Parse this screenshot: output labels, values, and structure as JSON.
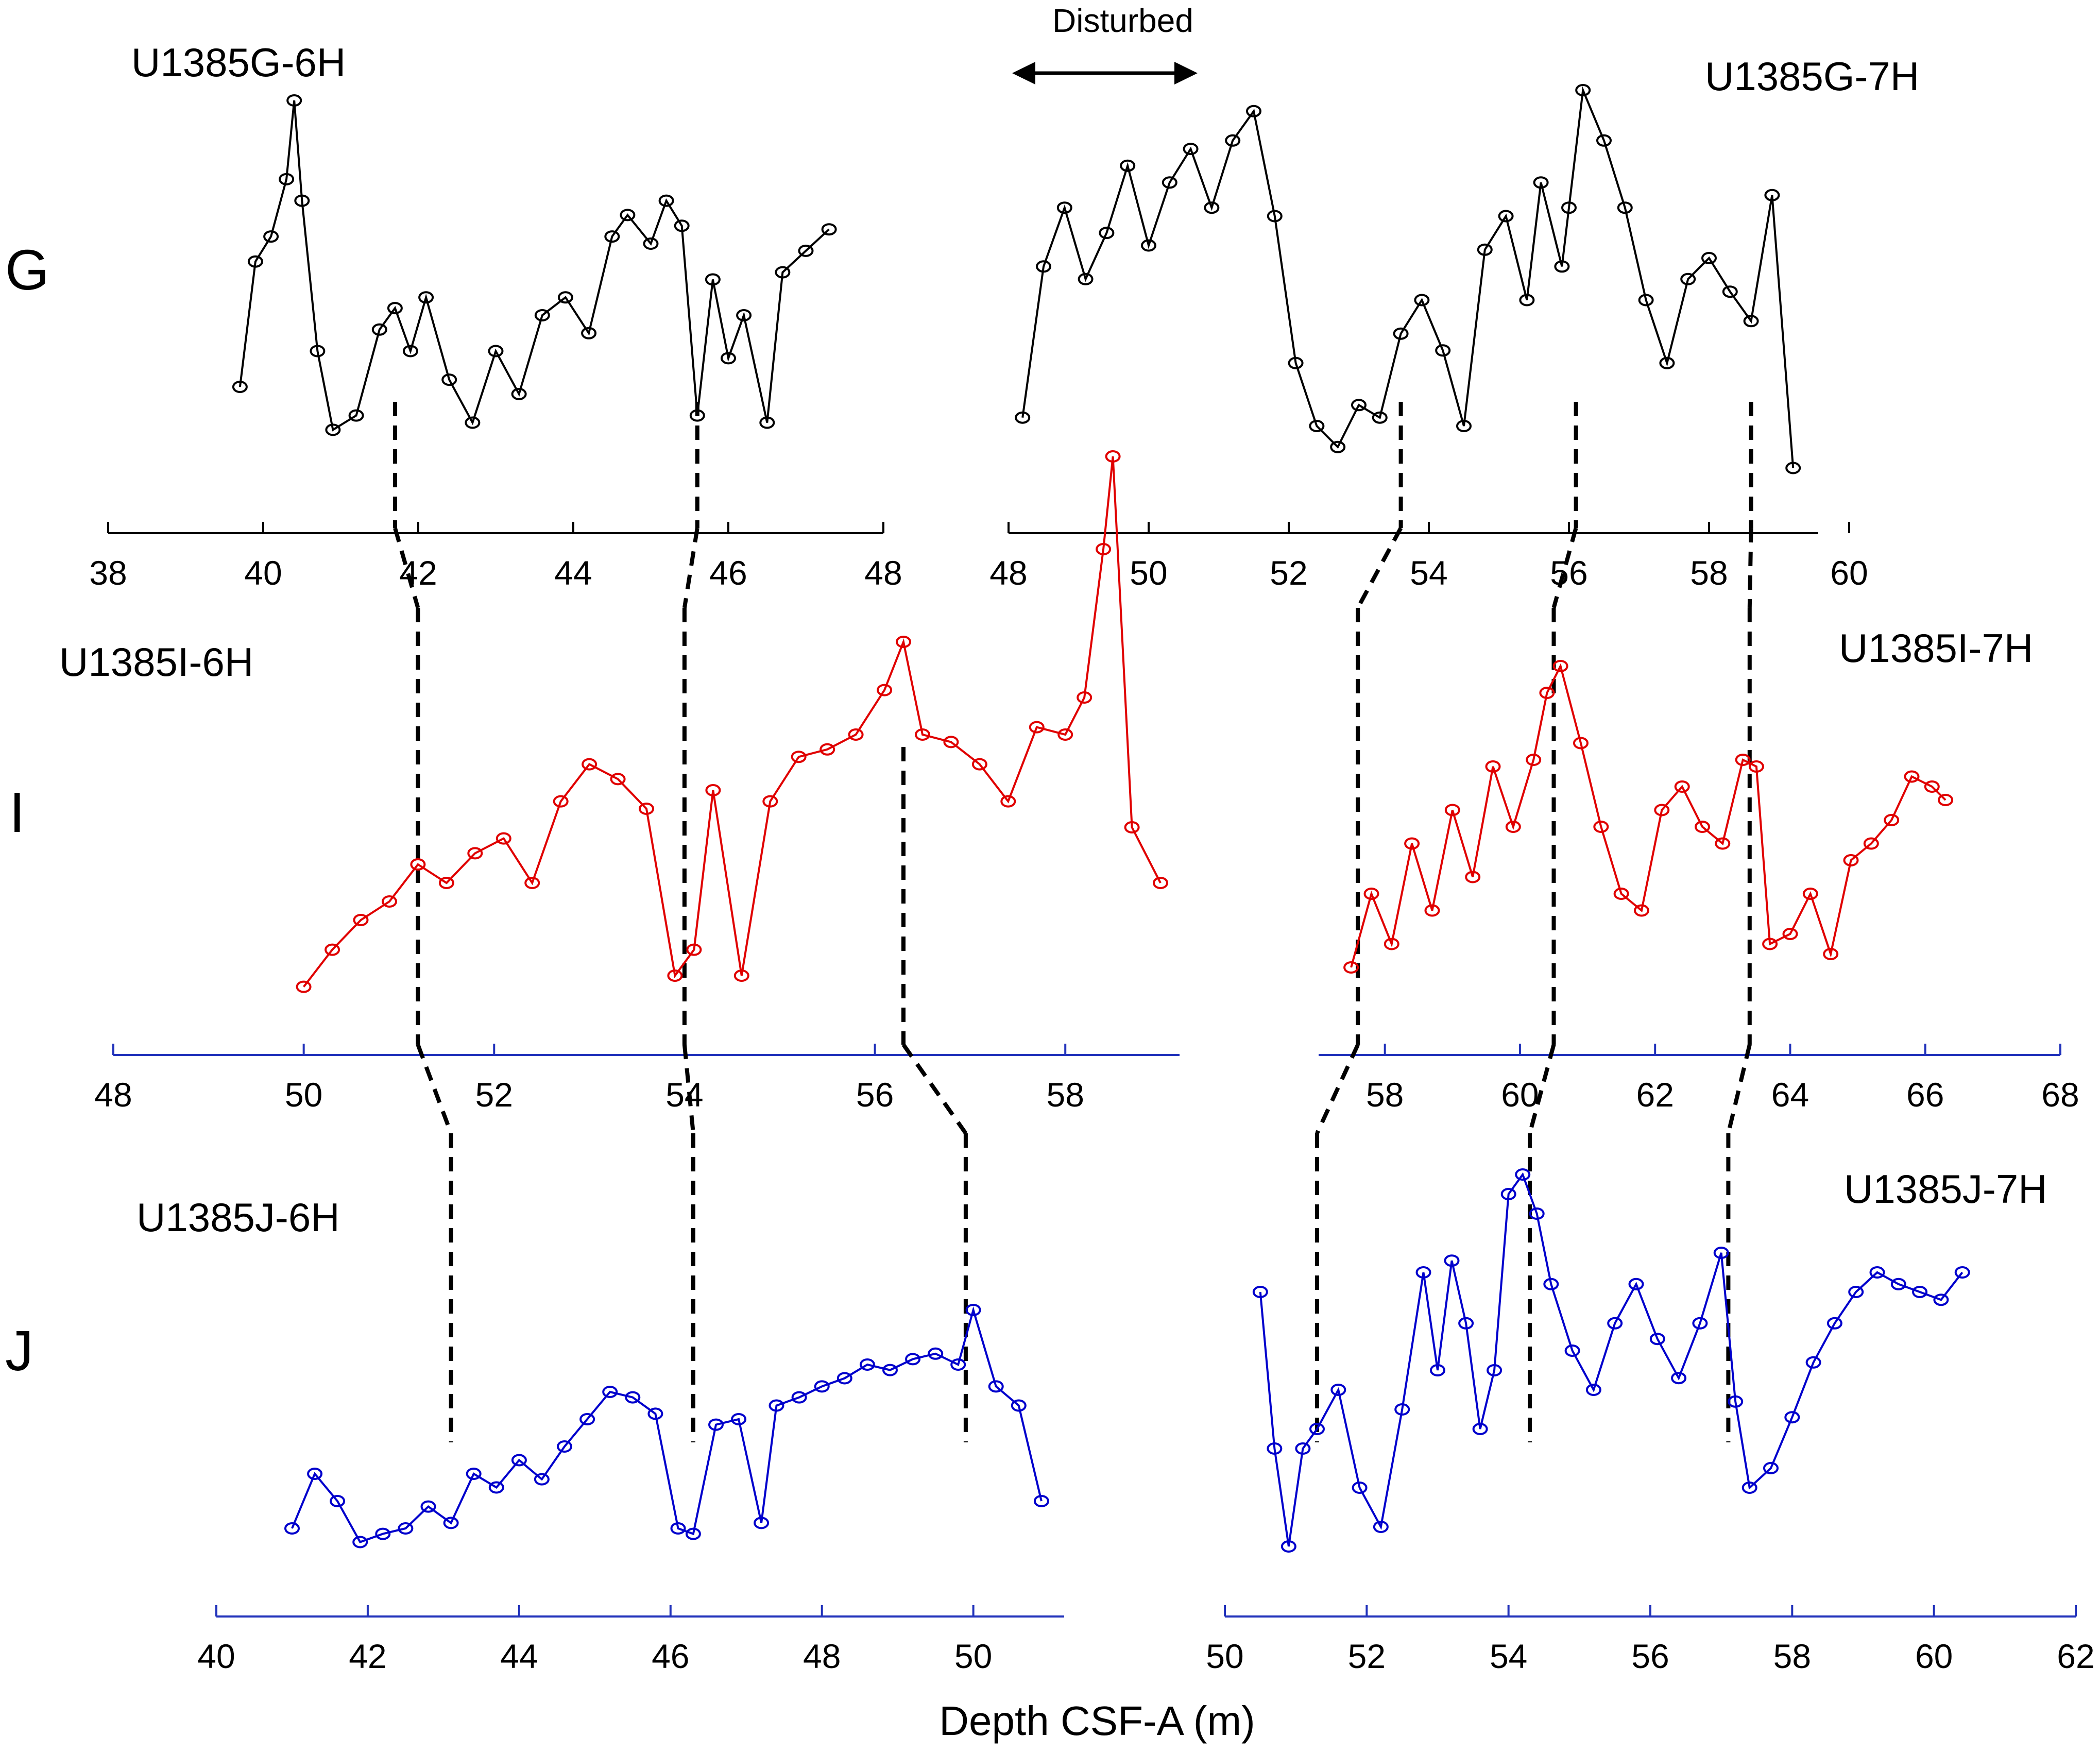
{
  "figure": {
    "xlabel": "Depth CSF-A (m)",
    "annotation": "Disturbed",
    "hole_labels": [
      "G",
      "I",
      "J"
    ]
  },
  "colors": {
    "G": "#000000",
    "I": "#e00000",
    "J": "#0000cc",
    "tie": "#000000"
  },
  "chart_data": [
    {
      "type": "line",
      "hole": "G",
      "core": "U1385G-6H",
      "xlim": [
        38,
        48
      ],
      "ticks": [
        38,
        40,
        42,
        44,
        46,
        48
      ],
      "series": [
        {
          "name": "U1385G-6H",
          "x": [
            39.7,
            39.9,
            40.1,
            40.3,
            40.4,
            40.5,
            40.7,
            40.9,
            41.2,
            41.5,
            41.7,
            41.9,
            42.1,
            42.4,
            42.7,
            43.0,
            43.3,
            43.6,
            43.9,
            44.2,
            44.5,
            44.7,
            45.0,
            45.2,
            45.4,
            45.6,
            45.8,
            46.0,
            46.2,
            46.5,
            46.7,
            47.0,
            47.3
          ],
          "y": [
            0.2,
            0.55,
            0.62,
            0.78,
            1.0,
            0.72,
            0.3,
            0.08,
            0.12,
            0.36,
            0.42,
            0.3,
            0.45,
            0.22,
            0.1,
            0.3,
            0.18,
            0.4,
            0.45,
            0.35,
            0.62,
            0.68,
            0.6,
            0.72,
            0.65,
            0.12,
            0.5,
            0.28,
            0.4,
            0.1,
            0.52,
            0.58,
            0.64
          ]
        }
      ]
    },
    {
      "type": "line",
      "hole": "G",
      "core": "U1385G-7H",
      "xlim": [
        48,
        60
      ],
      "ticks": [
        48,
        50,
        52,
        54,
        56,
        58,
        60
      ],
      "series": [
        {
          "name": "U1385G-7H",
          "x": [
            48.2,
            48.5,
            48.8,
            49.1,
            49.4,
            49.7,
            50.0,
            50.3,
            50.6,
            50.9,
            51.2,
            51.5,
            51.8,
            52.1,
            52.4,
            52.7,
            53.0,
            53.3,
            53.6,
            53.9,
            54.2,
            54.5,
            54.8,
            55.1,
            55.4,
            55.6,
            55.9,
            56.0,
            56.2,
            56.5,
            56.8,
            57.1,
            57.4,
            57.7,
            58.0,
            58.3,
            58.6,
            58.9,
            59.2
          ],
          "y": [
            0.22,
            0.58,
            0.72,
            0.55,
            0.66,
            0.82,
            0.63,
            0.78,
            0.86,
            0.72,
            0.88,
            0.95,
            0.7,
            0.35,
            0.2,
            0.15,
            0.25,
            0.22,
            0.42,
            0.5,
            0.38,
            0.2,
            0.62,
            0.7,
            0.5,
            0.78,
            0.58,
            0.72,
            1.0,
            0.88,
            0.72,
            0.5,
            0.35,
            0.55,
            0.6,
            0.52,
            0.45,
            0.75,
            0.1
          ]
        }
      ]
    },
    {
      "type": "line",
      "hole": "I",
      "core": "U1385I-6H",
      "xlim": [
        48,
        59.2
      ],
      "ticks": [
        48,
        50,
        52,
        54,
        56,
        58
      ],
      "series": [
        {
          "name": "U1385I-6H",
          "x": [
            50.0,
            50.3,
            50.6,
            50.9,
            51.2,
            51.5,
            51.8,
            52.1,
            52.4,
            52.7,
            53.0,
            53.3,
            53.6,
            53.9,
            54.1,
            54.3,
            54.6,
            54.9,
            55.2,
            55.5,
            55.8,
            56.1,
            56.3,
            56.5,
            56.8,
            57.1,
            57.4,
            57.7,
            58.0,
            58.2,
            58.4,
            58.5,
            58.7,
            59.0
          ],
          "y": [
            0.02,
            0.12,
            0.2,
            0.25,
            0.35,
            0.3,
            0.38,
            0.42,
            0.3,
            0.52,
            0.62,
            0.58,
            0.5,
            0.05,
            0.12,
            0.55,
            0.05,
            0.52,
            0.64,
            0.66,
            0.7,
            0.82,
            0.95,
            0.7,
            0.68,
            0.62,
            0.52,
            0.72,
            0.7,
            0.8,
            1.2,
            1.45,
            0.45,
            0.3
          ]
        }
      ]
    },
    {
      "type": "line",
      "hole": "I",
      "core": "U1385I-7H",
      "xlim": [
        57.4,
        68
      ],
      "ticks": [
        58,
        60,
        62,
        64,
        66,
        68
      ],
      "series": [
        {
          "name": "U1385I-7H",
          "x": [
            57.5,
            57.8,
            58.1,
            58.4,
            58.7,
            59.0,
            59.3,
            59.6,
            59.9,
            60.2,
            60.4,
            60.6,
            60.9,
            61.2,
            61.5,
            61.8,
            62.1,
            62.4,
            62.7,
            63.0,
            63.3,
            63.5,
            63.7,
            64.0,
            64.3,
            64.6,
            64.9,
            65.2,
            65.5,
            65.8,
            66.1,
            66.3
          ],
          "y": [
            0.08,
            0.3,
            0.15,
            0.45,
            0.25,
            0.55,
            0.35,
            0.68,
            0.5,
            0.7,
            0.9,
            0.98,
            0.75,
            0.5,
            0.3,
            0.25,
            0.55,
            0.62,
            0.5,
            0.45,
            0.7,
            0.68,
            0.15,
            0.18,
            0.3,
            0.12,
            0.4,
            0.45,
            0.52,
            0.65,
            0.62,
            0.58
          ]
        }
      ]
    },
    {
      "type": "line",
      "hole": "J",
      "core": "U1385J-6H",
      "xlim": [
        40,
        51.2
      ],
      "ticks": [
        40,
        42,
        44,
        46,
        48,
        50
      ],
      "series": [
        {
          "name": "U1385J-6H",
          "x": [
            41.0,
            41.3,
            41.6,
            41.9,
            42.2,
            42.5,
            42.8,
            43.1,
            43.4,
            43.7,
            44.0,
            44.3,
            44.6,
            44.9,
            45.2,
            45.5,
            45.8,
            46.1,
            46.3,
            46.6,
            46.9,
            47.2,
            47.4,
            47.7,
            48.0,
            48.3,
            48.6,
            48.9,
            49.2,
            49.5,
            49.8,
            50.0,
            50.3,
            50.6,
            50.9
          ],
          "y": [
            0.1,
            0.3,
            0.2,
            0.05,
            0.08,
            0.1,
            0.18,
            0.12,
            0.3,
            0.25,
            0.35,
            0.28,
            0.4,
            0.5,
            0.6,
            0.58,
            0.52,
            0.1,
            0.08,
            0.48,
            0.5,
            0.12,
            0.55,
            0.58,
            0.62,
            0.65,
            0.7,
            0.68,
            0.72,
            0.74,
            0.7,
            0.9,
            0.62,
            0.55,
            0.2
          ]
        }
      ]
    },
    {
      "type": "line",
      "hole": "J",
      "core": "U1385J-7H",
      "xlim": [
        50,
        62
      ],
      "ticks": [
        50,
        52,
        54,
        56,
        58,
        60,
        62
      ],
      "series": [
        {
          "name": "U1385J-7H",
          "x": [
            50.5,
            50.7,
            50.9,
            51.1,
            51.3,
            51.6,
            51.9,
            52.2,
            52.5,
            52.8,
            53.0,
            53.2,
            53.4,
            53.6,
            53.8,
            54.0,
            54.2,
            54.4,
            54.6,
            54.9,
            55.2,
            55.5,
            55.8,
            56.1,
            56.4,
            56.7,
            57.0,
            57.2,
            57.4,
            57.7,
            58.0,
            58.3,
            58.6,
            58.9,
            59.2,
            59.5,
            59.8,
            60.1,
            60.4
          ],
          "y": [
            0.7,
            0.3,
            0.05,
            0.3,
            0.35,
            0.45,
            0.2,
            0.1,
            0.4,
            0.75,
            0.5,
            0.78,
            0.62,
            0.35,
            0.5,
            0.95,
            1.0,
            0.9,
            0.72,
            0.55,
            0.45,
            0.62,
            0.72,
            0.58,
            0.48,
            0.62,
            0.8,
            0.42,
            0.2,
            0.25,
            0.38,
            0.52,
            0.62,
            0.7,
            0.75,
            0.72,
            0.7,
            0.68,
            0.75
          ]
        }
      ]
    }
  ],
  "tie_lines": [
    {
      "G": 41.7,
      "I": 51.2,
      "J": 43.1
    },
    {
      "G": 45.6,
      "I": 54.0,
      "J": 46.3
    },
    {
      "I": 56.3,
      "J": 49.9
    },
    {
      "G": 53.6,
      "I": 57.6,
      "J": 51.3
    },
    {
      "G": 56.1,
      "I": 60.5,
      "J": 54.3
    },
    {
      "G": 58.6,
      "I": 63.4,
      "J": 57.1
    }
  ]
}
